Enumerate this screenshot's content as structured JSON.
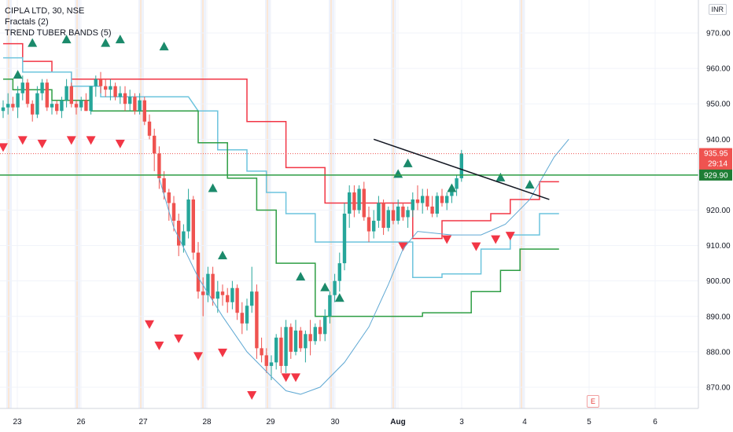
{
  "legend": {
    "title": "CIPLA LTD, 30, NSE",
    "line2": "Fractals (2)",
    "line3": "TREND TUBER BANDS (5)"
  },
  "currency": "INR",
  "event_badge": "E",
  "colors": {
    "up": "#26a69a",
    "down": "#ef5350",
    "red_band": "#f23645",
    "blue_band": "#6cc4dd",
    "green_band": "#2e9e44",
    "arc": "#5fa8d3",
    "green_line": "#2e9e44",
    "trendline": "#131722",
    "last_price_bg": "#ef5350",
    "green_tag_bg": "#1e7d34"
  },
  "chart_data": {
    "type": "candlestick",
    "symbol": "CIPLA LTD, 30, NSE",
    "y_ticks": [
      "970.00",
      "960.00",
      "950.00",
      "940.00",
      "930.00",
      "920.00",
      "910.00",
      "900.00",
      "890.00",
      "880.00",
      "870.00"
    ],
    "x_ticks": [
      "23",
      "26",
      "27",
      "28",
      "29",
      "30",
      "Aug",
      "3",
      "4",
      "5",
      "6"
    ],
    "last_price": {
      "value": "935.95",
      "countdown": "29:14"
    },
    "horizontal_level": "929.90",
    "ylim": [
      864,
      976
    ],
    "candles": [
      [
        948,
        951,
        946,
        949
      ],
      [
        949,
        953,
        947,
        950
      ],
      [
        950,
        952,
        948,
        949
      ],
      [
        949,
        955,
        946,
        953
      ],
      [
        953,
        958,
        951,
        956
      ],
      [
        956,
        957,
        949,
        950
      ],
      [
        950,
        951,
        945,
        947
      ],
      [
        947,
        955,
        946,
        953
      ],
      [
        953,
        957,
        951,
        956
      ],
      [
        956,
        957,
        948,
        949
      ],
      [
        949,
        951,
        947,
        950
      ],
      [
        950,
        951,
        947,
        948
      ],
      [
        948,
        952,
        946,
        951
      ],
      [
        951,
        957,
        949,
        955
      ],
      [
        955,
        956,
        949,
        950
      ],
      [
        950,
        951,
        947,
        949
      ],
      [
        949,
        952,
        948,
        951
      ],
      [
        951,
        953,
        948,
        948
      ],
      [
        948,
        955,
        947,
        955
      ],
      [
        955,
        958,
        952,
        957
      ],
      [
        957,
        959,
        953,
        955
      ],
      [
        955,
        957,
        952,
        954
      ],
      [
        954,
        957,
        951,
        955
      ],
      [
        955,
        956,
        951,
        952
      ],
      [
        952,
        955,
        950,
        953
      ],
      [
        953,
        955,
        948,
        950
      ],
      [
        950,
        954,
        948,
        952
      ],
      [
        952,
        953,
        947,
        948
      ],
      [
        948,
        953,
        947,
        951
      ],
      [
        951,
        952,
        944,
        945
      ],
      [
        945,
        947,
        940,
        941
      ],
      [
        941,
        943,
        931,
        936
      ],
      [
        936,
        938,
        926,
        929
      ],
      [
        929,
        931,
        923,
        925
      ],
      [
        925,
        926,
        917,
        922
      ],
      [
        922,
        924,
        914,
        917
      ],
      [
        917,
        919,
        907,
        910
      ],
      [
        910,
        916,
        908,
        914
      ],
      [
        914,
        926,
        912,
        923
      ],
      [
        923,
        924,
        906,
        908
      ],
      [
        908,
        911,
        895,
        897
      ],
      [
        897,
        901,
        890,
        896
      ],
      [
        896,
        904,
        894,
        902
      ],
      [
        902,
        904,
        893,
        895
      ],
      [
        895,
        900,
        891,
        897
      ],
      [
        897,
        899,
        893,
        896
      ],
      [
        896,
        898,
        891,
        894
      ],
      [
        894,
        900,
        892,
        898
      ],
      [
        898,
        899,
        889,
        891
      ],
      [
        891,
        894,
        885,
        888
      ],
      [
        888,
        895,
        886,
        893
      ],
      [
        893,
        904,
        891,
        897
      ],
      [
        897,
        899,
        878,
        881
      ],
      [
        881,
        884,
        877,
        879
      ],
      [
        879,
        881,
        874,
        876
      ],
      [
        876,
        879,
        872,
        877
      ],
      [
        877,
        885,
        875,
        884
      ],
      [
        884,
        887,
        874,
        876
      ],
      [
        876,
        889,
        874,
        887
      ],
      [
        887,
        888,
        878,
        880
      ],
      [
        880,
        889,
        879,
        886
      ],
      [
        886,
        887,
        880,
        881
      ],
      [
        881,
        886,
        877,
        885
      ],
      [
        885,
        889,
        879,
        883
      ],
      [
        883,
        888,
        882,
        887
      ],
      [
        887,
        889,
        883,
        885
      ],
      [
        885,
        892,
        883,
        890
      ],
      [
        890,
        897,
        888,
        896
      ],
      [
        896,
        902,
        894,
        900
      ],
      [
        900,
        908,
        897,
        905
      ],
      [
        905,
        922,
        903,
        919
      ],
      [
        919,
        927,
        915,
        925
      ],
      [
        925,
        927,
        918,
        920
      ],
      [
        920,
        927,
        919,
        926
      ],
      [
        926,
        928,
        917,
        918
      ],
      [
        918,
        921,
        911,
        914
      ],
      [
        914,
        920,
        912,
        917
      ],
      [
        917,
        924,
        915,
        922
      ],
      [
        922,
        923,
        913,
        915
      ],
      [
        915,
        921,
        914,
        920
      ],
      [
        920,
        922,
        916,
        917
      ],
      [
        917,
        923,
        916,
        921
      ],
      [
        921,
        922,
        917,
        918
      ],
      [
        918,
        921,
        915,
        920
      ],
      [
        920,
        925,
        918,
        923
      ],
      [
        923,
        927,
        920,
        922
      ],
      [
        922,
        926,
        919,
        924
      ],
      [
        924,
        926,
        920,
        921
      ],
      [
        921,
        924,
        918,
        919
      ],
      [
        919,
        925,
        918,
        924
      ],
      [
        924,
        926,
        921,
        922
      ],
      [
        922,
        925,
        920,
        924
      ],
      [
        924,
        927,
        922,
        926
      ],
      [
        926,
        930,
        924,
        929
      ],
      [
        929,
        937,
        928,
        936
      ]
    ],
    "fractals_up": [
      [
        3,
        958
      ],
      [
        6,
        967
      ],
      [
        13,
        968
      ],
      [
        21,
        967
      ],
      [
        24,
        968
      ],
      [
        33,
        966
      ],
      [
        43,
        926
      ],
      [
        45,
        907
      ],
      [
        61,
        901
      ],
      [
        66,
        898
      ],
      [
        69,
        895
      ],
      [
        81,
        930
      ],
      [
        83,
        933
      ],
      [
        92,
        926
      ],
      [
        102,
        929
      ],
      [
        108,
        927
      ]
    ],
    "fractals_down": [
      [
        0,
        938
      ],
      [
        4,
        940
      ],
      [
        8,
        939
      ],
      [
        14,
        940
      ],
      [
        18,
        940
      ],
      [
        24,
        939
      ],
      [
        30,
        888
      ],
      [
        32,
        882
      ],
      [
        36,
        884
      ],
      [
        40,
        879
      ],
      [
        45,
        880
      ],
      [
        51,
        868
      ],
      [
        58,
        873
      ],
      [
        60,
        873
      ],
      [
        82,
        910
      ],
      [
        91,
        912
      ],
      [
        97,
        910
      ],
      [
        101,
        912
      ],
      [
        104,
        913
      ]
    ],
    "red_band": [
      [
        0,
        967
      ],
      [
        4,
        967
      ],
      [
        4,
        962
      ],
      [
        10,
        962
      ],
      [
        10,
        959
      ],
      [
        14,
        959
      ],
      [
        14,
        957
      ],
      [
        30,
        957
      ],
      [
        50,
        957
      ],
      [
        50,
        945
      ],
      [
        58,
        945
      ],
      [
        58,
        932
      ],
      [
        66,
        932
      ],
      [
        66,
        922
      ],
      [
        84,
        922
      ],
      [
        84,
        912
      ],
      [
        90,
        912
      ],
      [
        90,
        917
      ],
      [
        100,
        917
      ],
      [
        100,
        919
      ],
      [
        104,
        919
      ],
      [
        104,
        923
      ],
      [
        110,
        923
      ],
      [
        110,
        928
      ],
      [
        114,
        928
      ]
    ],
    "blue_band": [
      [
        0,
        963
      ],
      [
        4,
        963
      ],
      [
        4,
        959
      ],
      [
        14,
        959
      ],
      [
        14,
        955
      ],
      [
        20,
        955
      ],
      [
        20,
        952
      ],
      [
        38,
        952
      ],
      [
        40,
        948
      ],
      [
        44,
        948
      ],
      [
        44,
        937
      ],
      [
        50,
        937
      ],
      [
        50,
        931
      ],
      [
        54,
        931
      ],
      [
        54,
        925
      ],
      [
        58,
        925
      ],
      [
        58,
        919
      ],
      [
        64,
        919
      ],
      [
        64,
        911
      ],
      [
        84,
        911
      ],
      [
        84,
        901
      ],
      [
        90,
        901
      ],
      [
        90,
        902
      ],
      [
        98,
        902
      ],
      [
        98,
        909
      ],
      [
        104,
        909
      ],
      [
        104,
        913
      ],
      [
        110,
        913
      ],
      [
        110,
        919
      ],
      [
        114,
        919
      ]
    ],
    "green_band": [
      [
        0,
        957
      ],
      [
        2,
        957
      ],
      [
        2,
        954
      ],
      [
        10,
        954
      ],
      [
        10,
        951
      ],
      [
        18,
        951
      ],
      [
        18,
        948
      ],
      [
        40,
        948
      ],
      [
        40,
        939
      ],
      [
        46,
        939
      ],
      [
        46,
        929
      ],
      [
        52,
        929
      ],
      [
        52,
        920
      ],
      [
        56,
        920
      ],
      [
        56,
        905
      ],
      [
        64,
        905
      ],
      [
        64,
        890
      ],
      [
        86,
        890
      ],
      [
        86,
        891
      ],
      [
        96,
        891
      ],
      [
        96,
        897
      ],
      [
        102,
        897
      ],
      [
        102,
        903
      ],
      [
        106,
        903
      ],
      [
        106,
        909
      ],
      [
        114,
        909
      ]
    ],
    "arc": [
      [
        32,
        929
      ],
      [
        35,
        915
      ],
      [
        40,
        901
      ],
      [
        45,
        890
      ],
      [
        50,
        880
      ],
      [
        55,
        873
      ],
      [
        58,
        869
      ],
      [
        61,
        868
      ],
      [
        65,
        870
      ],
      [
        70,
        877
      ],
      [
        75,
        887
      ],
      [
        79,
        899
      ],
      [
        82,
        909
      ],
      [
        85,
        914
      ],
      [
        92,
        913
      ],
      [
        98,
        913
      ],
      [
        103,
        916
      ],
      [
        108,
        923
      ],
      [
        113,
        935
      ],
      [
        116,
        940
      ]
    ],
    "trendline": [
      [
        76,
        940
      ],
      [
        112,
        923
      ]
    ]
  }
}
